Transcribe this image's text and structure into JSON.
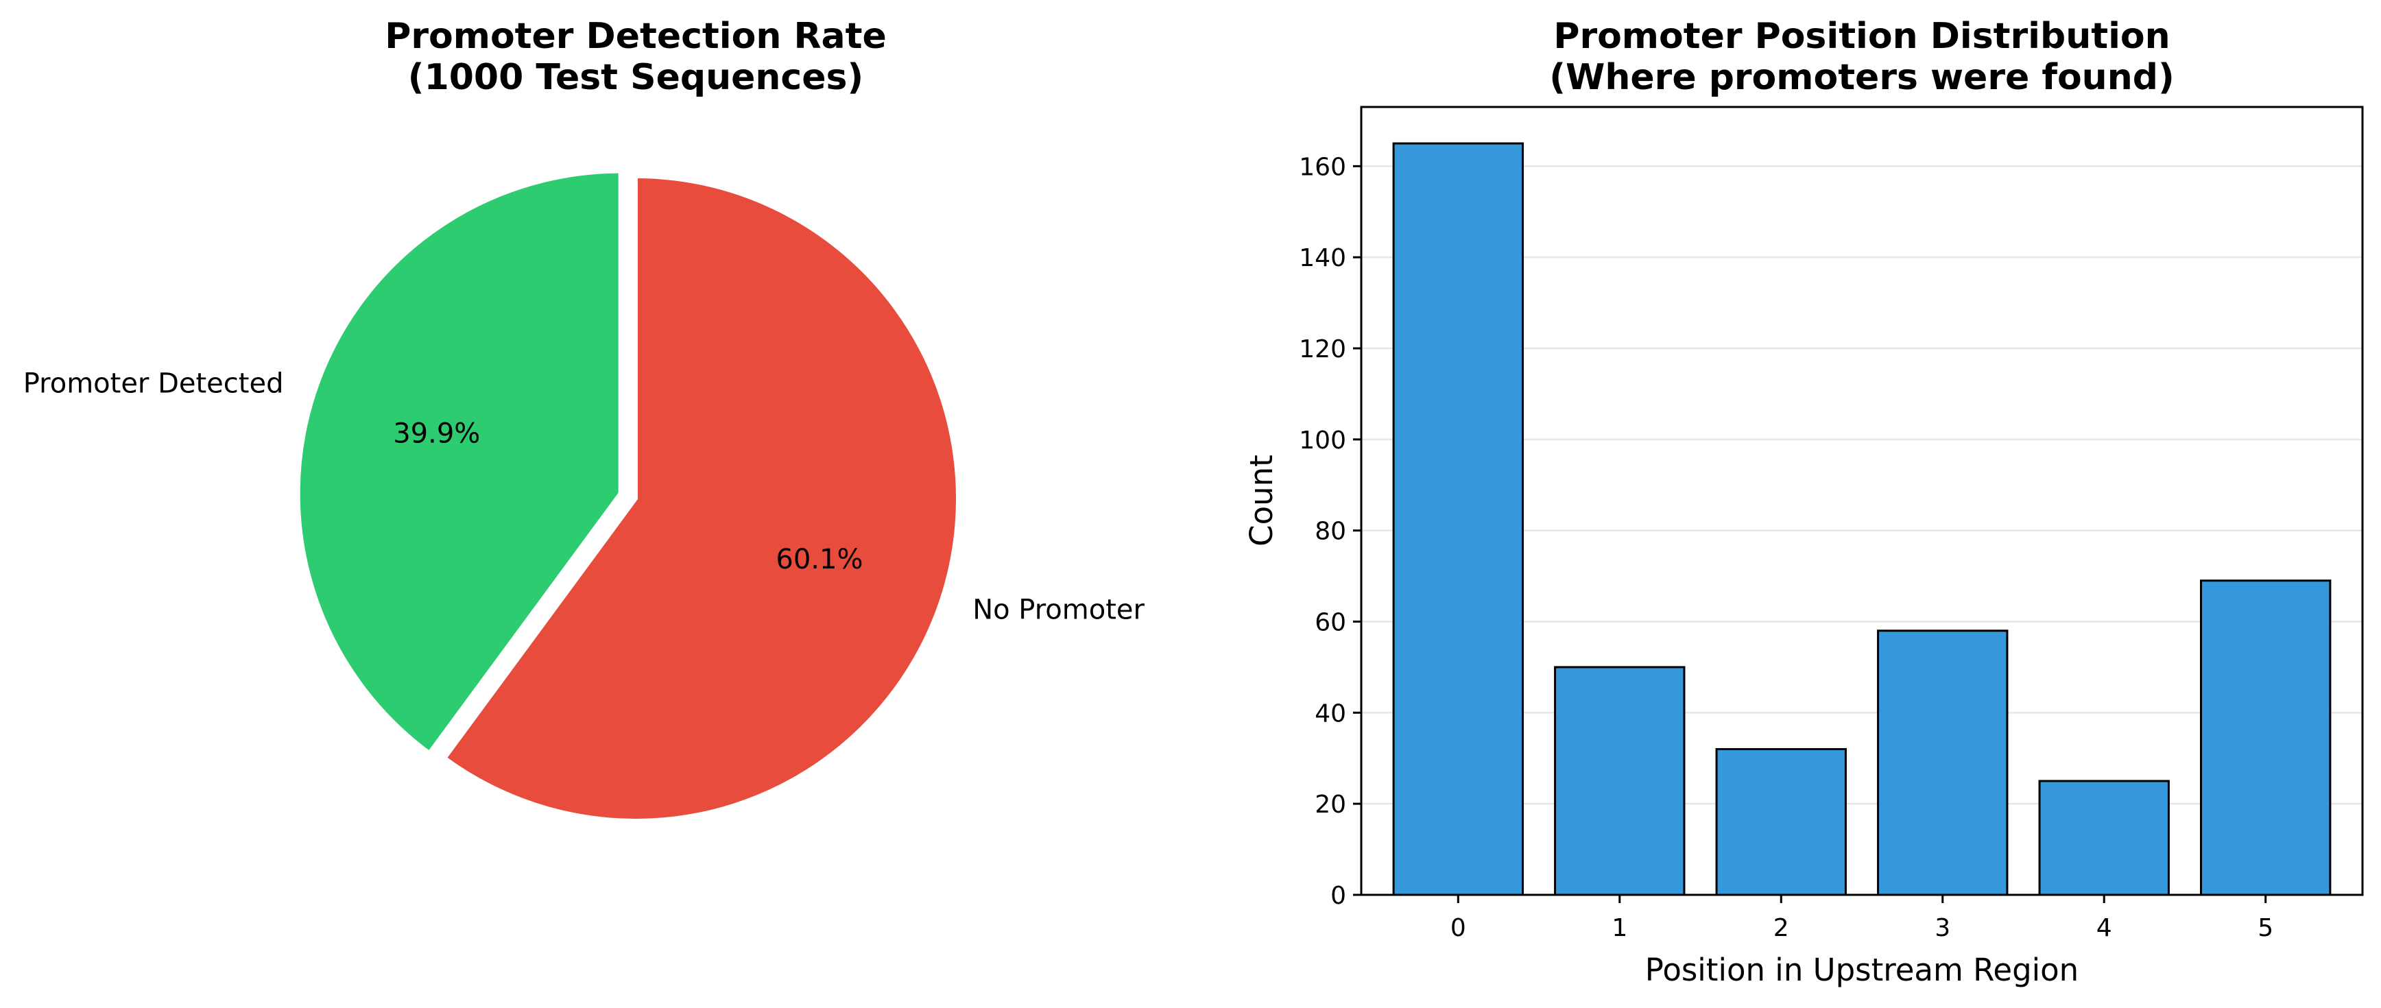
{
  "chart_data": [
    {
      "type": "pie",
      "title": "Promoter Detection Rate\n(1000 Test Sequences)",
      "labels": [
        "Promoter Detected",
        "No Promoter"
      ],
      "values": [
        39.9,
        60.1
      ],
      "percent_labels": [
        "39.9%",
        "60.1%"
      ],
      "colors": [
        "#2ecc71",
        "#e74c3c"
      ],
      "exploded": [
        true,
        false
      ]
    },
    {
      "type": "bar",
      "title": "Promoter Position Distribution\n(Where promoters were found)",
      "categories": [
        "0",
        "1",
        "2",
        "3",
        "4",
        "5"
      ],
      "values": [
        165,
        50,
        32,
        58,
        25,
        69
      ],
      "xlabel": "Position in Upstream Region",
      "ylabel": "Count",
      "ylim": [
        0,
        173
      ],
      "yticks": [
        0,
        20,
        40,
        60,
        80,
        100,
        120,
        140,
        160
      ],
      "bar_color": "#3498db",
      "edge_color": "#000000",
      "grid": "y"
    }
  ]
}
